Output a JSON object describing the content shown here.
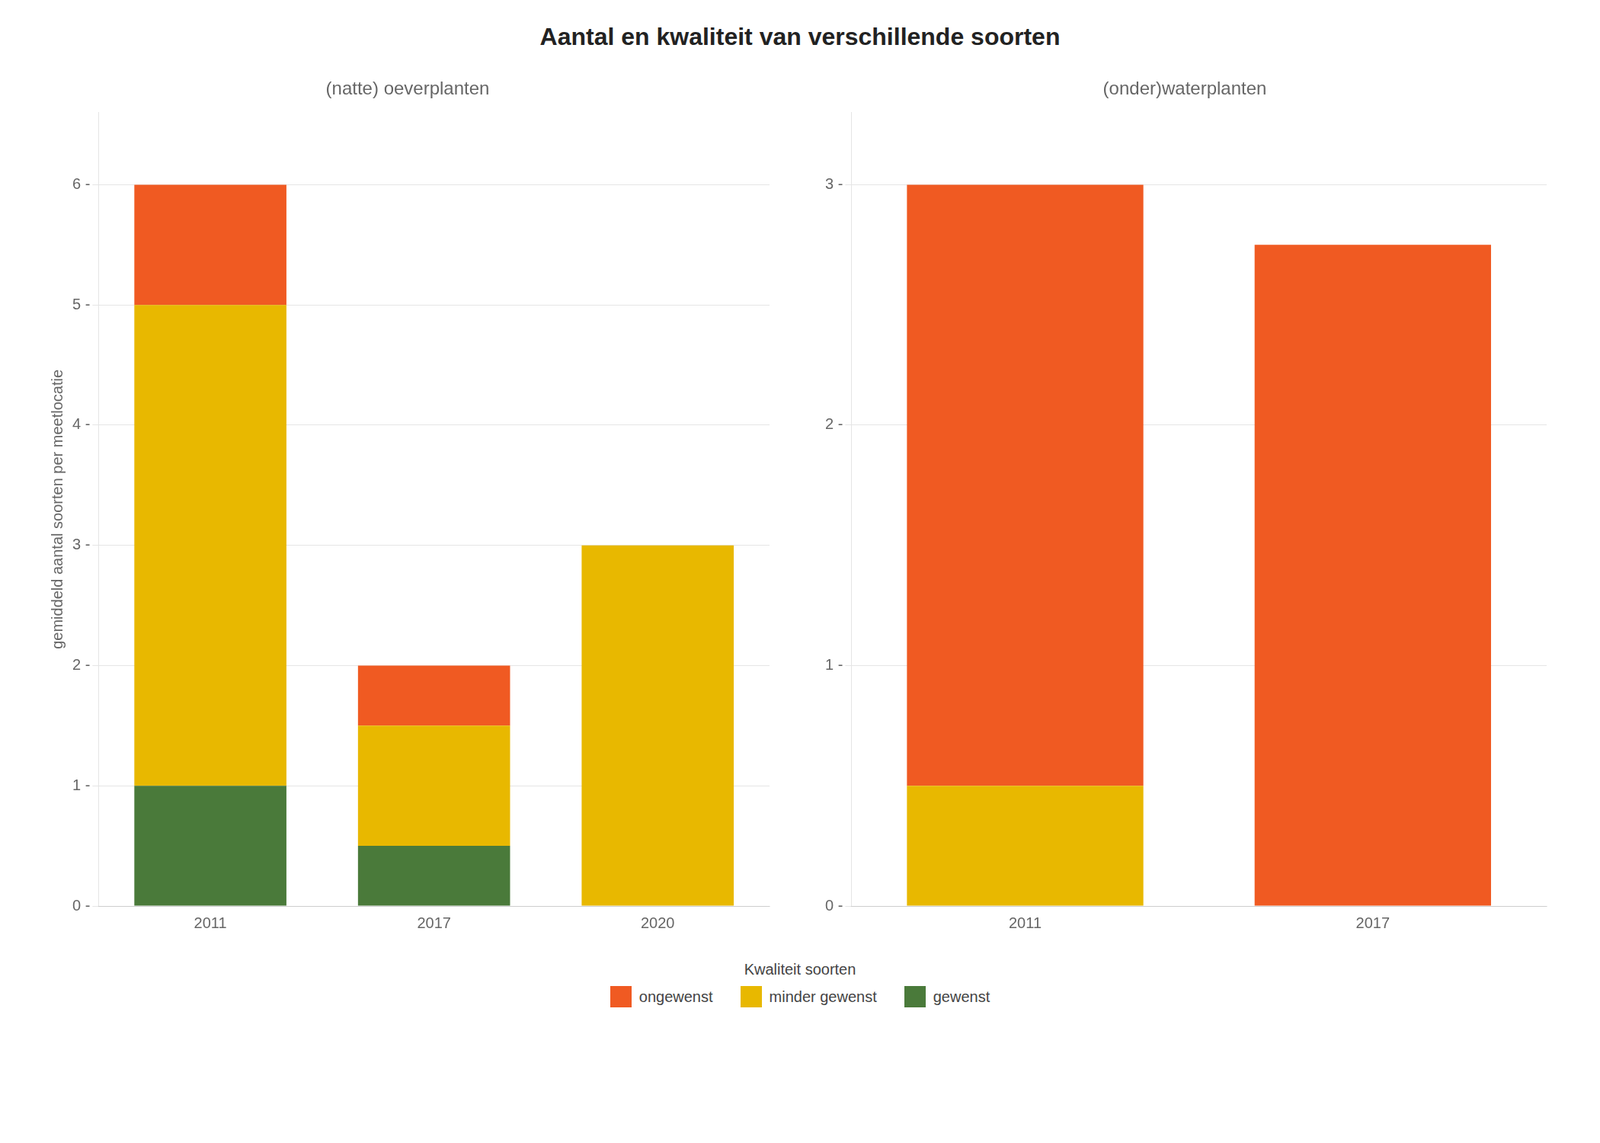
{
  "title": "Aantal en kwaliteit van verschillende soorten",
  "legend_title": "Kwaliteit soorten",
  "legend": "bottom",
  "chart_data": [
    {
      "type": "bar",
      "stacked": true,
      "grid": true,
      "subtitle": "(natte) oeverplanten",
      "ylabel": "gemiddeld aantal soorten per meetlocatie",
      "categories": [
        "2011",
        "2017",
        "2020"
      ],
      "series": [
        {
          "name": "gewenst",
          "color": "#4A7A3A",
          "values": [
            1.0,
            0.5,
            0.0
          ]
        },
        {
          "name": "minder gewenst",
          "color": "#E8B800",
          "values": [
            4.0,
            1.0,
            3.0
          ]
        },
        {
          "name": "ongewenst",
          "color": "#F05A22",
          "values": [
            1.0,
            0.5,
            0.0
          ]
        }
      ],
      "ylim": [
        0,
        6.6
      ],
      "yticks": [
        {
          "value": 0,
          "label": "0 -"
        },
        {
          "value": 1,
          "label": "1 -"
        },
        {
          "value": 2,
          "label": "2 -"
        },
        {
          "value": 3,
          "label": "3 -"
        },
        {
          "value": 4,
          "label": "4 -"
        },
        {
          "value": 5,
          "label": "5 -"
        },
        {
          "value": 6,
          "label": "6 -"
        }
      ]
    },
    {
      "type": "bar",
      "stacked": true,
      "grid": true,
      "subtitle": "(onder)waterplanten",
      "categories": [
        "2011",
        "2017"
      ],
      "series": [
        {
          "name": "gewenst",
          "color": "#4A7A3A",
          "values": [
            0.0,
            0.0
          ]
        },
        {
          "name": "minder gewenst",
          "color": "#E8B800",
          "values": [
            0.5,
            0.0
          ]
        },
        {
          "name": "ongewenst",
          "color": "#F05A22",
          "values": [
            2.5,
            2.75
          ]
        }
      ],
      "ylim": [
        0,
        3.3
      ],
      "yticks": [
        {
          "value": 0,
          "label": "0 -"
        },
        {
          "value": 1,
          "label": "1 -"
        },
        {
          "value": 2,
          "label": "2 -"
        },
        {
          "value": 3,
          "label": "3 -"
        }
      ]
    }
  ]
}
